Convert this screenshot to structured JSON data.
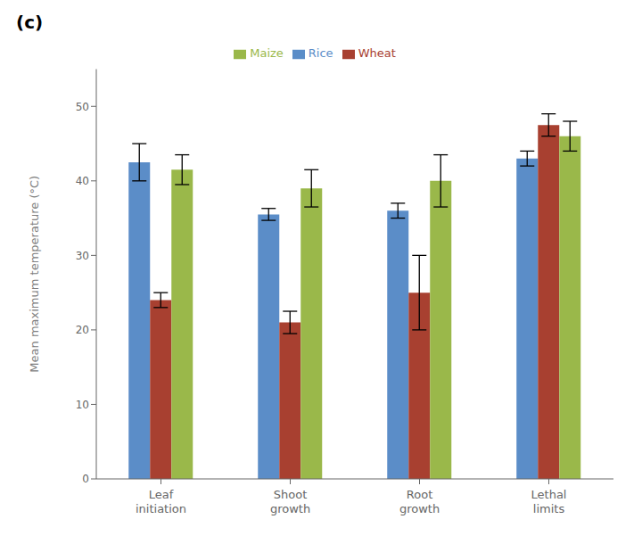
{
  "chart_data": {
    "type": "bar",
    "title": "(c)",
    "categories": [
      "Leaf\ninitiation",
      "Shoot\ngrowth",
      "Root\ngrowth",
      "Lethal\nlimits"
    ],
    "series": [
      {
        "name": "Rice",
        "color": "#5B8DC8",
        "values": [
          42.5,
          35.5,
          36.0,
          43.0
        ],
        "errors": [
          2.5,
          0.8,
          1.0,
          1.0
        ]
      },
      {
        "name": "Wheat",
        "color": "#A84030",
        "values": [
          24.0,
          21.0,
          25.0,
          47.5
        ],
        "errors": [
          1.0,
          1.5,
          5.0,
          1.5
        ]
      },
      {
        "name": "Maize",
        "color": "#9AB84A",
        "values": [
          41.5,
          39.0,
          40.0,
          46.0
        ],
        "errors": [
          2.0,
          2.5,
          3.5,
          2.0
        ]
      }
    ],
    "ylabel": "Mean maximum temperature (°C)",
    "ylim": [
      0,
      55
    ],
    "yticks": [
      0,
      10,
      20,
      30,
      40,
      50
    ],
    "grid": false,
    "legend": "top"
  }
}
